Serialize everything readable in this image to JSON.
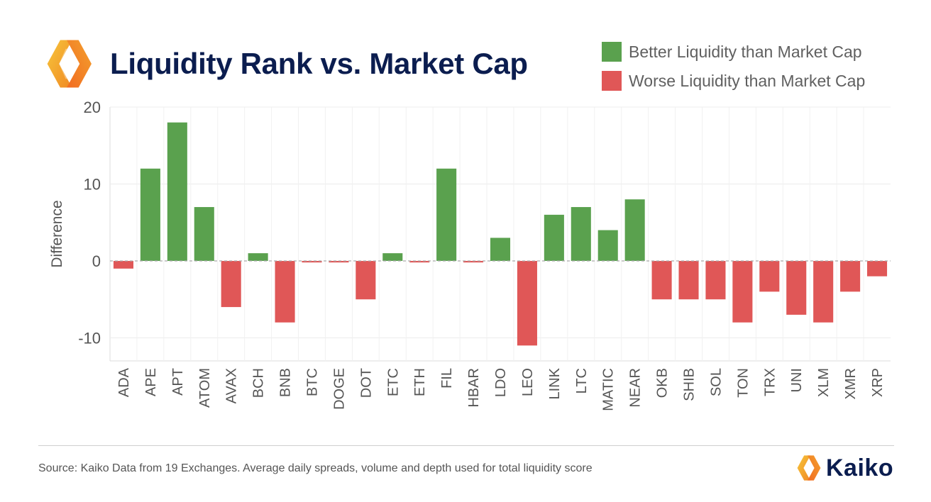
{
  "header": {
    "title": "Liquidity Rank vs. Market Cap"
  },
  "legend": {
    "items": [
      {
        "label": "Better Liquidity than Market Cap",
        "color": "#5aa14e"
      },
      {
        "label": "Worse Liquidity than Market Cap",
        "color": "#e05757"
      }
    ]
  },
  "chart_data": {
    "type": "bar",
    "title": "Liquidity Rank vs. Market Cap",
    "xlabel": "",
    "ylabel": "Difference",
    "ylim": [
      -13,
      20
    ],
    "yticks": [
      20,
      10,
      0,
      -10
    ],
    "grid": true,
    "legend_position": "top-right",
    "categories": [
      "ADA",
      "APE",
      "APT",
      "ATOM",
      "AVAX",
      "BCH",
      "BNB",
      "BTC",
      "DOGE",
      "DOT",
      "ETC",
      "ETH",
      "FIL",
      "HBAR",
      "LDO",
      "LEO",
      "LINK",
      "LTC",
      "MATIC",
      "NEAR",
      "OKB",
      "SHIB",
      "SOL",
      "TON",
      "TRX",
      "UNI",
      "XLM",
      "XMR",
      "XRP"
    ],
    "values": [
      -1,
      12,
      18,
      7,
      -6,
      1,
      -8,
      -0.2,
      -0.2,
      -5,
      1,
      -0.2,
      12,
      -0.2,
      3,
      -11,
      6,
      7,
      4,
      8,
      -5,
      -5,
      -5,
      -8,
      -4,
      -7,
      -8,
      -4,
      -2
    ],
    "positive_color": "#5aa14e",
    "negative_color": "#e05757"
  },
  "footer": {
    "source": "Source: Kaiko Data from 19 Exchanges. Average daily spreads, volume and depth used for total liquidity score",
    "brand": "Kaiko"
  },
  "icons": {
    "top_logo": "kaiko-logo-icon",
    "brand_logo": "kaiko-logo-icon"
  }
}
